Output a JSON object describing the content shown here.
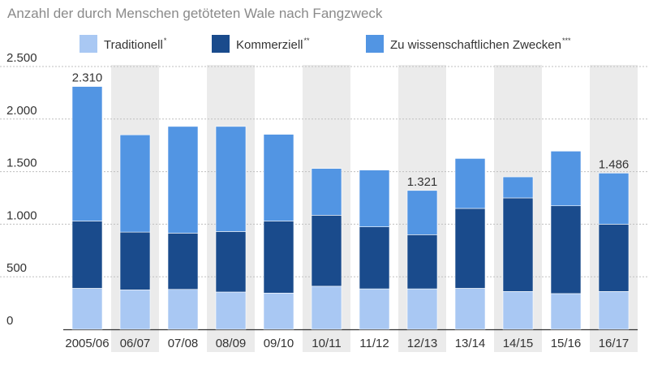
{
  "chart_data": {
    "type": "bar",
    "stacked": true,
    "title": "Anzahl der durch Menschen getöteten Wale nach Fangzweck",
    "categories": [
      "2005/06",
      "06/07",
      "07/08",
      "08/09",
      "09/10",
      "10/11",
      "11/12",
      "12/13",
      "13/14",
      "14/15",
      "15/16",
      "16/17"
    ],
    "series": [
      {
        "name": "Traditionell",
        "superscript": "*",
        "color": "#a9c8f3",
        "values": [
          390,
          375,
          380,
          355,
          345,
          410,
          385,
          385,
          390,
          360,
          340,
          360
        ]
      },
      {
        "name": "Kommerziell",
        "superscript": "**",
        "color": "#1a4b8c",
        "values": [
          640,
          550,
          535,
          575,
          685,
          675,
          590,
          515,
          760,
          890,
          835,
          640
        ]
      },
      {
        "name": "Zu wissenschaftlichen Zwecken",
        "superscript": "***",
        "color": "#5295e3",
        "values": [
          1280,
          925,
          1015,
          1000,
          825,
          445,
          540,
          421,
          475,
          200,
          520,
          486
        ]
      }
    ],
    "totals": [
      2310,
      1850,
      1930,
      1930,
      1855,
      1530,
      1515,
      1321,
      1625,
      1450,
      1695,
      1486
    ],
    "data_labels": [
      {
        "category": "2005/06",
        "text": "2.310"
      },
      {
        "category": "12/13",
        "text": "1.321"
      },
      {
        "category": "16/17",
        "text": "1.486"
      }
    ],
    "yticks": [
      0,
      500,
      1000,
      1500,
      2000,
      2500
    ],
    "ytick_labels": [
      "0",
      "500",
      "1.000",
      "1.500",
      "2.000",
      "2.500"
    ],
    "ylim": [
      0,
      2500
    ],
    "xlabel": "",
    "ylabel": "",
    "legend_position": "top",
    "grid": true,
    "alternating_column_shading": true,
    "shading_color": "#ebebeb",
    "gridline_color": "#bfbfbf"
  }
}
